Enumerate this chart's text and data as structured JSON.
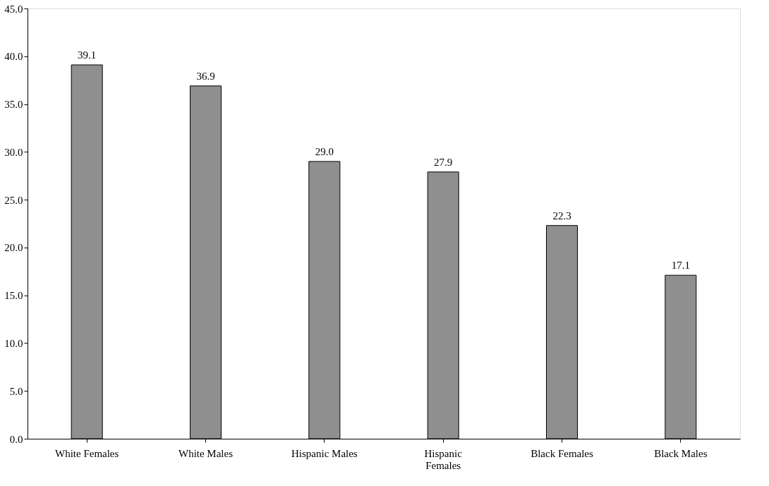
{
  "chart_data": {
    "type": "bar",
    "categories": [
      "White Females",
      "White Males",
      "Hispanic Males",
      "Hispanic Females",
      "Black Females",
      "Black Males"
    ],
    "values": [
      39.1,
      36.9,
      29.0,
      27.9,
      22.3,
      17.1
    ],
    "value_labels": [
      "39.1",
      "36.9",
      "29.0",
      "27.9",
      "22.3",
      "17.1"
    ],
    "color": "#8f8f8f",
    "ylim": [
      0,
      45
    ],
    "yticks": [
      {
        "value": 0,
        "label": "0.0"
      },
      {
        "value": 5,
        "label": "5.0"
      },
      {
        "value": 10,
        "label": "10.0"
      },
      {
        "value": 15,
        "label": "15.0"
      },
      {
        "value": 20,
        "label": "20.0"
      },
      {
        "value": 25,
        "label": "25.0"
      },
      {
        "value": 30,
        "label": "30.0"
      },
      {
        "value": 35,
        "label": "35.0"
      },
      {
        "value": 40,
        "label": "40.0"
      },
      {
        "value": 45,
        "label": "45.0"
      }
    ],
    "grid": false
  }
}
